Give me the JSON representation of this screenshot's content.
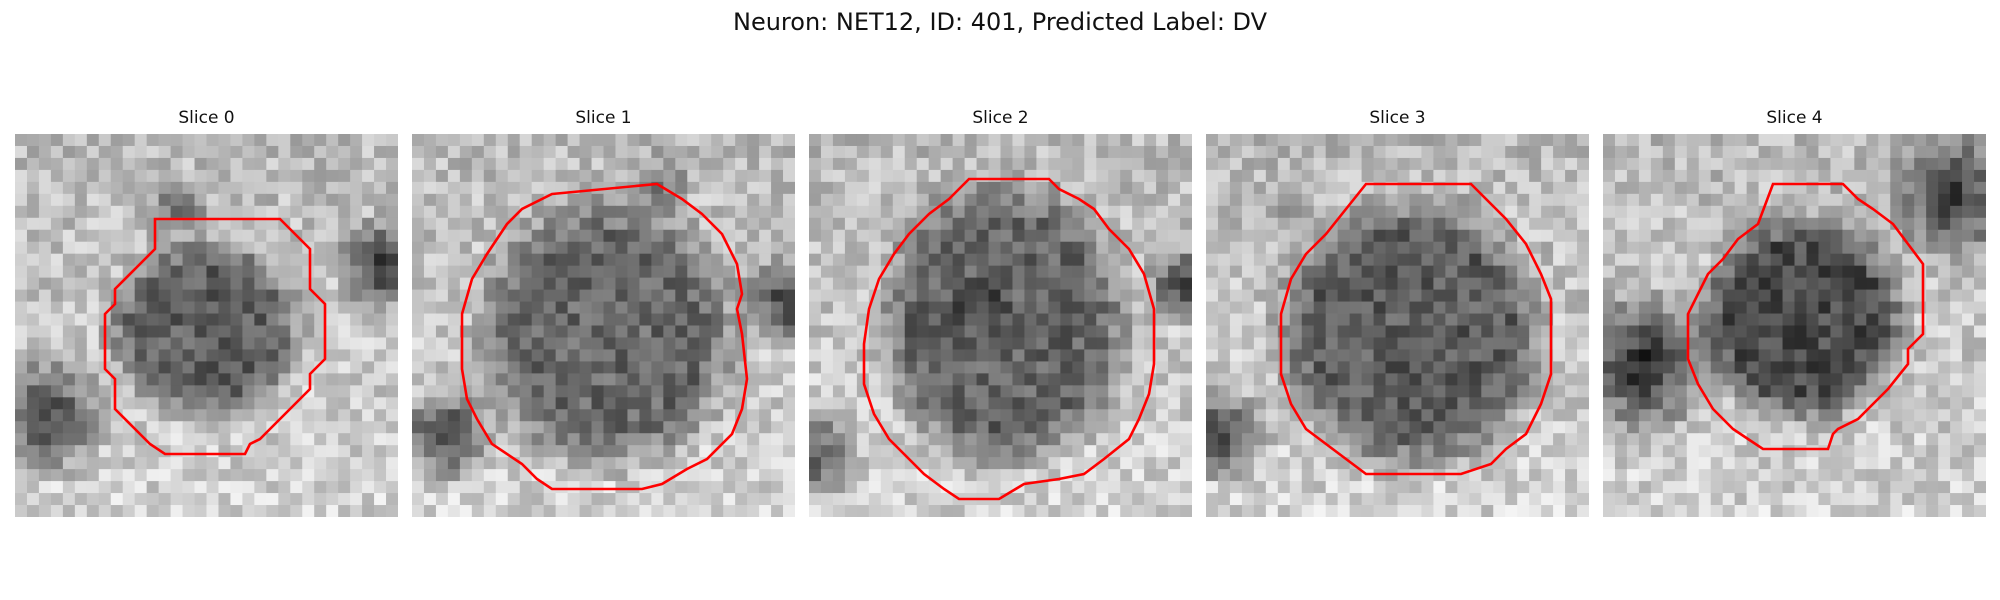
{
  "figure": {
    "title": "Neuron: NET12, ID: 401, Predicted Label: DV"
  },
  "panels": [
    {
      "title": "Slice 0"
    },
    {
      "title": "Slice 1"
    },
    {
      "title": "Slice 2"
    },
    {
      "title": "Slice 3"
    },
    {
      "title": "Slice 4"
    }
  ],
  "colors": {
    "contour": "#ff0000",
    "colormap": "grayscale"
  }
}
